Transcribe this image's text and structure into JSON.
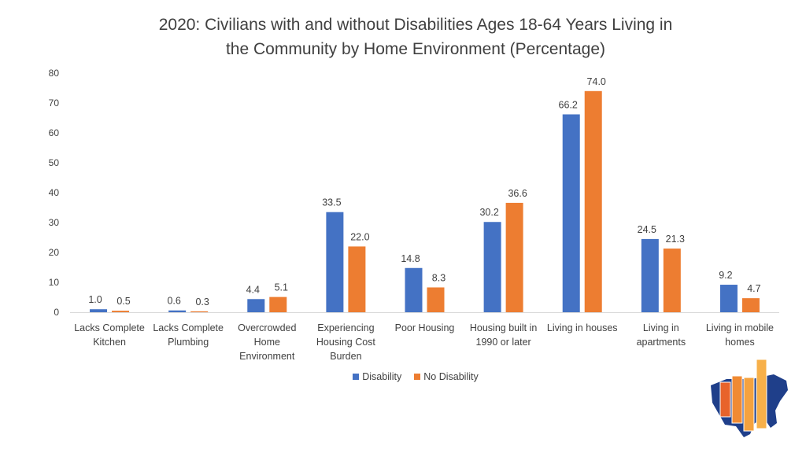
{
  "chart_data": {
    "type": "bar",
    "title_lines": [
      "2020: Civilians with and without Disabilities Ages 18-64 Years Living in",
      "the Community by Home Environment (Percentage)"
    ],
    "categories": [
      [
        "Lacks Complete",
        "Kitchen"
      ],
      [
        "Lacks Complete",
        "Plumbing"
      ],
      [
        "Overcrowded",
        "Home",
        "Environment"
      ],
      [
        "Experiencing",
        "Housing Cost",
        "Burden"
      ],
      [
        "Poor Housing"
      ],
      [
        "Housing built in",
        "1990 or later"
      ],
      [
        "Living in houses"
      ],
      [
        "Living in",
        "apartments"
      ],
      [
        "Living in mobile",
        "homes"
      ]
    ],
    "series": [
      {
        "name": "Disability",
        "color": "#4472C4",
        "values": [
          1.0,
          0.6,
          4.4,
          33.5,
          14.8,
          30.2,
          66.2,
          24.5,
          9.2
        ],
        "labels": [
          "1.0",
          "0.6",
          "4.4",
          "33.5",
          "14.8",
          "30.2",
          "66.2",
          "24.5",
          "9.2"
        ]
      },
      {
        "name": "No Disability",
        "color": "#ED7D31",
        "values": [
          0.5,
          0.3,
          5.1,
          22.0,
          8.3,
          36.6,
          74.0,
          21.3,
          4.7
        ],
        "labels": [
          "0.5",
          "0.3",
          "5.1",
          "22.0",
          "8.3",
          "36.6",
          "74.0",
          "21.3",
          "4.7"
        ]
      }
    ],
    "ylim": [
      0,
      80
    ],
    "yticks": [
      "0",
      "10",
      "20",
      "30",
      "40",
      "50",
      "60",
      "70",
      "80"
    ],
    "grid": false,
    "legend_position": "bottom-center",
    "xlabel": "",
    "ylabel": ""
  }
}
